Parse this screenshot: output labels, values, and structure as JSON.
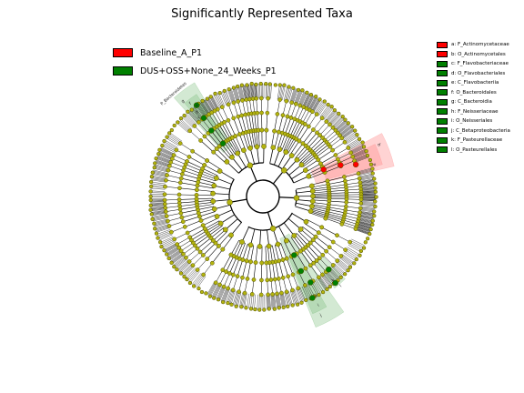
{
  "title": "Significantly Represented Taxa",
  "colors": {
    "node": "#b3b30f",
    "node_edge": "#4d4d00",
    "red": "#ff0000",
    "green": "#008000",
    "red_shade": "#ff9090",
    "green_shade": "#80c080"
  },
  "groups": [
    {
      "label": "Baseline_A_P1",
      "color": "#ff0000"
    },
    {
      "label": "DUS+OSS+None_24_Weeks_P1",
      "color": "#008000"
    }
  ],
  "clades": [
    {
      "label": "a: F_Actinomycetaceae",
      "color": "#ff0000"
    },
    {
      "label": "b: O_Actinomycetales",
      "color": "#ff0000"
    },
    {
      "label": "c: F_Flavobacteriaceae",
      "color": "#008000"
    },
    {
      "label": "d: O_Flavobacteriales",
      "color": "#008000"
    },
    {
      "label": "e: C_Flavobacteriia",
      "color": "#008000"
    },
    {
      "label": "f: O_Bacteroidales",
      "color": "#008000"
    },
    {
      "label": "g: C_Bacteroidia",
      "color": "#008000"
    },
    {
      "label": "h: F_Neisseriaceae",
      "color": "#008000"
    },
    {
      "label": "i: O_Neisseriales",
      "color": "#008000"
    },
    {
      "label": "j: C_Betaproteobacteria",
      "color": "#008000"
    },
    {
      "label": "k: F_Pasteurellaceae",
      "color": "#008000"
    },
    {
      "label": "l: O_Pasteurellales",
      "color": "#008000"
    }
  ],
  "phylum_label": "P_Bacteroidetes",
  "sector_letters": {
    "red": [
      "b",
      "a"
    ],
    "green_top": [
      "g",
      "f",
      "e",
      "d",
      "c"
    ],
    "green_bottom_inner": [
      "j",
      "i",
      "h"
    ],
    "green_bottom_outer": [
      "l",
      "k"
    ]
  }
}
